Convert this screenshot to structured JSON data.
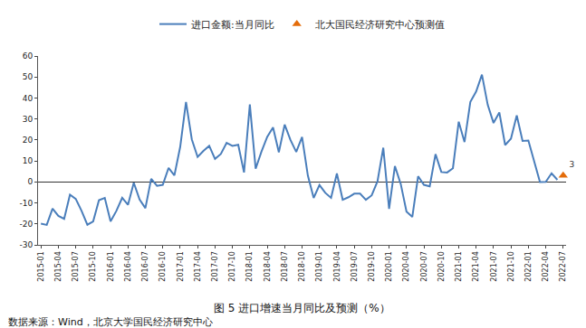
{
  "chart_data": {
    "type": "line",
    "title": "图 5 进口增速当月同比及预测（%）",
    "subtitle": "数据来源：Wind，北京大学国民经济研究中心",
    "categories": [
      "2015-01",
      null,
      null,
      "2015-04",
      null,
      null,
      "2015-07",
      null,
      null,
      "2015-10",
      null,
      null,
      "2016-01",
      null,
      null,
      "2016-04",
      null,
      null,
      "2016-07",
      null,
      null,
      "2016-10",
      null,
      null,
      "2017-01",
      null,
      null,
      "2017-04",
      null,
      null,
      "2017-07",
      null,
      null,
      "2017-10",
      null,
      null,
      "2018-01",
      null,
      null,
      "2018-04",
      null,
      null,
      "2018-07",
      null,
      null,
      "2018-10",
      null,
      null,
      "2019-01",
      null,
      null,
      "2019-04",
      null,
      null,
      "2019-07",
      null,
      null,
      "2019-10",
      null,
      null,
      "2020-01",
      null,
      null,
      "2020-04",
      null,
      null,
      "2020-07",
      null,
      null,
      "2020-10",
      null,
      null,
      "2021-01",
      null,
      null,
      "2021-04",
      null,
      null,
      "2021-07",
      null,
      null,
      "2021-10",
      null,
      null,
      "2022-01",
      null,
      null,
      "2022-04",
      null,
      null,
      "2022-07"
    ],
    "series": [
      {
        "name": "进口金额:当月同比",
        "color": "#4a7ebb",
        "type": "line",
        "values": [
          -19.9,
          -20.5,
          -12.7,
          -16.2,
          -17.6,
          -6.1,
          -8.1,
          -13.8,
          -20.4,
          -18.8,
          -8.7,
          -7.6,
          -18.8,
          -13.8,
          -7.6,
          -10.9,
          -0.4,
          -8.4,
          -12.5,
          1.5,
          -1.9,
          -1.4,
          6.7,
          3.1,
          16.7,
          38.1,
          20.3,
          11.9,
          14.8,
          17.2,
          11.0,
          13.3,
          18.6,
          17.2,
          17.7,
          4.5,
          36.9,
          6.3,
          14.4,
          21.5,
          26.0,
          14.1,
          27.3,
          20.0,
          14.3,
          21.4,
          3.0,
          -7.6,
          -1.5,
          -5.2,
          -7.6,
          4.0,
          -8.5,
          -7.3,
          -5.6,
          -5.6,
          -8.5,
          -6.4,
          0.3,
          16.3,
          -12.8,
          7.5,
          -0.9,
          -14.2,
          -16.7,
          2.7,
          -1.4,
          -2.1,
          13.2,
          4.7,
          4.5,
          6.5,
          28.7,
          19.0,
          38.1,
          43.1,
          51.1,
          36.7,
          28.1,
          33.1,
          17.6,
          20.6,
          31.7,
          19.5,
          19.7,
          10.0,
          -0.1,
          0.0,
          4.1,
          1.0,
          null
        ]
      },
      {
        "name": "北大国民经济研究中心预测值",
        "color": "#e46c0a",
        "type": "scatter",
        "marker": "triangle",
        "data_labels": true,
        "values": [
          null,
          null,
          null,
          null,
          null,
          null,
          null,
          null,
          null,
          null,
          null,
          null,
          null,
          null,
          null,
          null,
          null,
          null,
          null,
          null,
          null,
          null,
          null,
          null,
          null,
          null,
          null,
          null,
          null,
          null,
          null,
          null,
          null,
          null,
          null,
          null,
          null,
          null,
          null,
          null,
          null,
          null,
          null,
          null,
          null,
          null,
          null,
          null,
          null,
          null,
          null,
          null,
          null,
          null,
          null,
          null,
          null,
          null,
          null,
          null,
          null,
          null,
          null,
          null,
          null,
          null,
          null,
          null,
          null,
          null,
          null,
          null,
          null,
          null,
          null,
          null,
          null,
          null,
          null,
          null,
          null,
          null,
          null,
          null,
          null,
          null,
          null,
          null,
          null,
          null,
          3
        ]
      }
    ],
    "ylim": [
      -30,
      60
    ],
    "yticks": [
      -30,
      -20,
      -10,
      0,
      10,
      20,
      30,
      40,
      50,
      60
    ],
    "grid": false,
    "legend": "top"
  }
}
